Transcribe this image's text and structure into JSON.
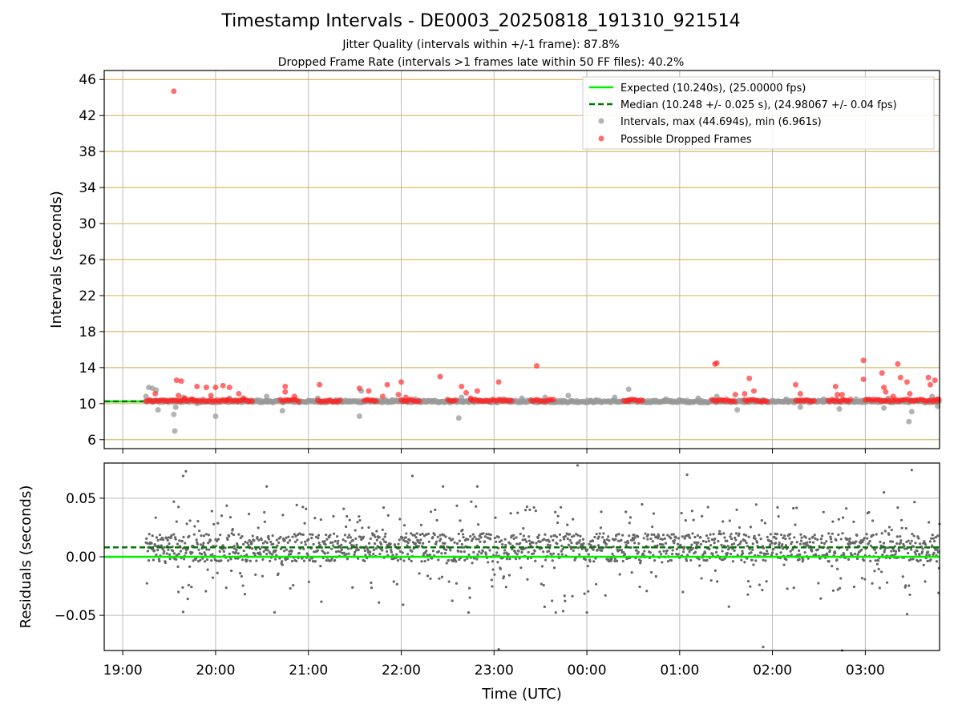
{
  "title": "Timestamp Intervals - DE0003_20250818_191310_921514",
  "subtitle_1": "Jitter Quality (intervals within +/-1 frame): 87.8%",
  "subtitle_2": "Dropped Frame Rate (intervals >1 frames late within 50 FF files): 40.2%",
  "colors": {
    "expected": "#00ee00",
    "median": "#007700",
    "intervals": "#999999",
    "dropped": "#ff2020",
    "residuals": "#666666",
    "grid_top": "#d9b96a",
    "grid_bottom": "#bbbbbb"
  },
  "chart_data": [
    {
      "type": "scatter",
      "ylabel": "Intervals (seconds)",
      "ylim": [
        5,
        47
      ],
      "xlim_hours": [
        18.8,
        27.8
      ],
      "yticks": [
        6,
        10,
        14,
        18,
        22,
        26,
        30,
        34,
        38,
        42,
        46
      ],
      "grid": true,
      "legend_position": "top-right",
      "legend": [
        "Expected (10.240s), (25.00000 fps)",
        "Median (10.248 +/- 0.025 s), (24.98067 +/- 0.04 fps)",
        "Intervals, max (44.694s), min (6.961s)",
        "Possible Dropped Frames"
      ],
      "expected_line": 10.24,
      "median_line": 10.248,
      "series": [
        {
          "name": "Intervals, max (44.694s), min (6.961s)",
          "points": [
            [
              19.25,
              10.8
            ],
            [
              19.28,
              11.8
            ],
            [
              19.32,
              11.7
            ],
            [
              19.36,
              11.5
            ],
            [
              19.38,
              9.3
            ],
            [
              19.55,
              8.8
            ],
            [
              19.56,
              6.96
            ],
            [
              19.57,
              9.6
            ],
            [
              19.65,
              10.7
            ],
            [
              19.8,
              10.0
            ],
            [
              20.0,
              8.6
            ],
            [
              20.15,
              10.6
            ],
            [
              20.45,
              10.4
            ],
            [
              20.55,
              10.8
            ],
            [
              20.72,
              9.2
            ],
            [
              20.9,
              10.1
            ],
            [
              21.1,
              10.6
            ],
            [
              21.3,
              10.4
            ],
            [
              21.55,
              8.6
            ],
            [
              21.57,
              11.4
            ],
            [
              21.7,
              10.3
            ],
            [
              21.9,
              10.4
            ],
            [
              22.15,
              10.5
            ],
            [
              22.4,
              10.2
            ],
            [
              22.62,
              8.4
            ],
            [
              22.65,
              10.7
            ],
            [
              22.8,
              10.4
            ],
            [
              23.1,
              10.5
            ],
            [
              23.3,
              10.6
            ],
            [
              23.55,
              10.7
            ],
            [
              23.8,
              10.9
            ],
            [
              24.1,
              10.4
            ],
            [
              24.3,
              10.7
            ],
            [
              24.45,
              11.6
            ],
            [
              24.6,
              10.3
            ],
            [
              24.85,
              10.5
            ],
            [
              25.0,
              10.4
            ],
            [
              25.2,
              10.6
            ],
            [
              25.3,
              10.1
            ],
            [
              25.4,
              10.8
            ],
            [
              25.62,
              9.3
            ],
            [
              25.9,
              10.4
            ],
            [
              26.15,
              10.5
            ],
            [
              26.3,
              9.6
            ],
            [
              26.55,
              10.5
            ],
            [
              26.72,
              9.4
            ],
            [
              26.9,
              10.5
            ],
            [
              27.2,
              9.5
            ],
            [
              27.25,
              10.6
            ],
            [
              27.47,
              8.0
            ],
            [
              27.5,
              9.1
            ],
            [
              27.72,
              10.8
            ],
            [
              27.78,
              9.7
            ]
          ]
        },
        {
          "name": "Possible Dropped Frames",
          "points": [
            [
              19.35,
              11.1
            ],
            [
              19.55,
              44.694
            ],
            [
              19.58,
              12.6
            ],
            [
              19.63,
              12.5
            ],
            [
              19.6,
              10.9
            ],
            [
              19.67,
              10.6
            ],
            [
              19.75,
              10.5
            ],
            [
              19.8,
              11.9
            ],
            [
              19.9,
              11.8
            ],
            [
              19.95,
              10.9
            ],
            [
              20.0,
              11.8
            ],
            [
              20.08,
              12.0
            ],
            [
              20.12,
              10.4
            ],
            [
              20.15,
              11.8
            ],
            [
              20.25,
              11.1
            ],
            [
              20.3,
              10.6
            ],
            [
              20.75,
              11.9
            ],
            [
              20.75,
              11.3
            ],
            [
              20.85,
              10.8
            ],
            [
              21.12,
              12.1
            ],
            [
              21.55,
              11.7
            ],
            [
              21.65,
              11.4
            ],
            [
              21.8,
              10.8
            ],
            [
              21.85,
              12.1
            ],
            [
              21.97,
              11.0
            ],
            [
              22.0,
              12.4
            ],
            [
              22.05,
              10.7
            ],
            [
              22.42,
              13.0
            ],
            [
              22.65,
              11.9
            ],
            [
              22.7,
              11.2
            ],
            [
              22.75,
              10.6
            ],
            [
              22.82,
              11.4
            ],
            [
              23.05,
              12.4
            ],
            [
              23.46,
              14.2
            ],
            [
              24.45,
              10.4
            ],
            [
              25.38,
              14.4
            ],
            [
              25.4,
              14.5
            ],
            [
              25.6,
              11.0
            ],
            [
              25.7,
              11.1
            ],
            [
              25.75,
              12.8
            ],
            [
              25.8,
              11.4
            ],
            [
              26.25,
              12.1
            ],
            [
              26.3,
              11.1
            ],
            [
              26.68,
              11.9
            ],
            [
              26.7,
              11.0
            ],
            [
              26.75,
              11.0
            ],
            [
              26.98,
              14.8
            ],
            [
              26.98,
              12.7
            ],
            [
              27.18,
              13.4
            ],
            [
              27.2,
              11.8
            ],
            [
              27.22,
              11.3
            ],
            [
              27.3,
              10.8
            ],
            [
              27.35,
              14.4
            ],
            [
              27.38,
              12.9
            ],
            [
              27.45,
              12.4
            ],
            [
              27.48,
              11.1
            ],
            [
              27.68,
              12.9
            ],
            [
              27.7,
              12.1
            ],
            [
              27.75,
              12.6
            ],
            [
              27.78,
              10.5
            ]
          ],
          "clusters": [
            [
              19.25,
              20.4
            ],
            [
              20.7,
              20.9
            ],
            [
              21.1,
              21.35
            ],
            [
              21.6,
              21.75
            ],
            [
              22.0,
              22.2
            ],
            [
              22.5,
              22.6
            ],
            [
              22.75,
              23.2
            ],
            [
              23.4,
              23.65
            ],
            [
              24.4,
              24.6
            ],
            [
              25.35,
              25.6
            ],
            [
              25.7,
              25.95
            ],
            [
              26.25,
              26.45
            ],
            [
              26.6,
              26.85
            ],
            [
              27.0,
              27.8
            ]
          ]
        }
      ]
    },
    {
      "type": "scatter",
      "ylabel": "Residuals (seconds)",
      "xlabel": "Time (UTC)",
      "ylim": [
        -0.08,
        0.08
      ],
      "xlim_hours": [
        18.8,
        27.8
      ],
      "yticks": [
        0.05,
        0.0,
        -0.05
      ],
      "ytick_labels": [
        "0.05",
        "0.00",
        "−0.05"
      ],
      "xticks_hours": [
        19,
        20,
        21,
        22,
        23,
        24,
        25,
        26,
        27
      ],
      "xtick_labels": [
        "19:00",
        "20:00",
        "21:00",
        "22:00",
        "23:00",
        "00:00",
        "01:00",
        "02:00",
        "03:00"
      ],
      "grid": true,
      "expected_line": 0.0,
      "median_line": 0.008,
      "series": [
        {
          "name": "Residuals",
          "time_range_hours": [
            19.25,
            27.8
          ],
          "core_band": [
            0.0,
            0.018
          ],
          "spread": [
            -0.08,
            0.08
          ],
          "notable_points": [
            [
              19.65,
              0.069
            ],
            [
              19.68,
              0.073
            ],
            [
              19.55,
              0.047
            ],
            [
              19.58,
              0.03
            ],
            [
              19.6,
              -0.03
            ],
            [
              19.65,
              -0.047
            ],
            [
              19.7,
              -0.036
            ],
            [
              20.55,
              0.06
            ],
            [
              22.12,
              0.069
            ],
            [
              22.45,
              0.06
            ],
            [
              22.82,
              0.06
            ],
            [
              23.05,
              -0.079
            ],
            [
              23.9,
              0.078
            ],
            [
              24.2,
              -0.033
            ],
            [
              25.08,
              0.07
            ],
            [
              25.9,
              -0.077
            ],
            [
              27.2,
              0.055
            ],
            [
              27.45,
              -0.049
            ],
            [
              27.5,
              0.074
            ],
            [
              26.75,
              -0.08
            ]
          ]
        }
      ]
    }
  ]
}
